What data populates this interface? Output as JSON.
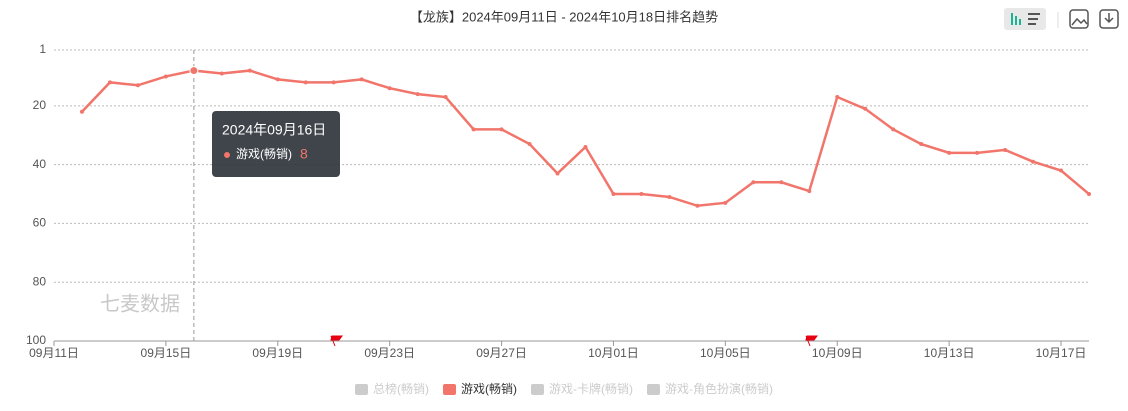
{
  "chart_data": {
    "type": "line",
    "title": "【龙族】2024年09月11日 - 2024年10月18日排名趋势",
    "categories": [
      "09月11日",
      null,
      null,
      null,
      "09月15日",
      null,
      null,
      null,
      "09月19日",
      null,
      null,
      null,
      "09月23日",
      null,
      null,
      null,
      "09月27日",
      null,
      null,
      null,
      "10月01日",
      null,
      null,
      null,
      "10月05日",
      null,
      null,
      null,
      "10月09日",
      null,
      null,
      null,
      "10月13日",
      null,
      null,
      null,
      "10月17日",
      null
    ],
    "series": [
      {
        "name": "游戏(畅销)",
        "color": "#f1756a",
        "values": [
          null,
          22,
          12,
          13,
          10,
          8,
          9,
          8,
          11,
          12,
          12,
          11,
          14,
          16,
          17,
          28,
          28,
          33,
          43,
          34,
          50,
          50,
          51,
          54,
          53,
          46,
          46,
          49,
          17,
          21,
          28,
          33,
          36,
          36,
          35,
          39,
          42,
          50
        ]
      }
    ],
    "legend": [
      {
        "name": "总榜(畅销)",
        "color": "#cccccc"
      },
      {
        "name": "游戏(畅销)",
        "color": "#f1756a"
      },
      {
        "name": "游戏-卡牌(畅销)",
        "color": "#cccccc"
      },
      {
        "name": "游戏-角色扮演(畅销)",
        "color": "#cccccc"
      }
    ],
    "ylim": [
      1,
      100
    ],
    "y_inverted": true,
    "yticks": [
      1,
      20,
      40,
      60,
      80,
      100
    ],
    "grid": true,
    "tooltip": {
      "title": "2024年09月16日",
      "index": 5
    },
    "watermark": "七麦数据"
  }
}
